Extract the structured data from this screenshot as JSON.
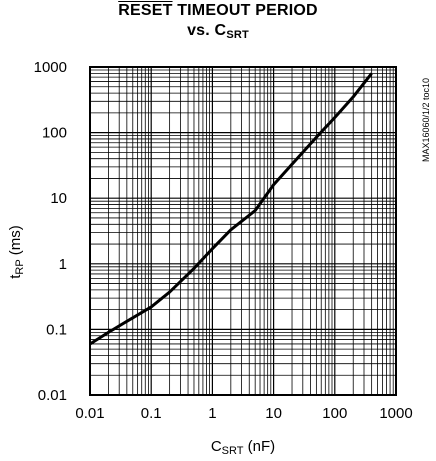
{
  "title_line1_overlined": "RESET",
  "title_line1_rest": " TIMEOUT PERIOD",
  "title_line2_prefix": "vs. C",
  "title_line2_sub": "SRT",
  "ylabel_main": "t",
  "ylabel_sub": "RP",
  "ylabel_unit": " (ms)",
  "xlabel_main": "C",
  "xlabel_sub": "SRT",
  "xlabel_unit": " (nF)",
  "watermark": "MAX16060/1/2 toc10",
  "chart_data": {
    "type": "line",
    "title": "RESET TIMEOUT PERIOD vs. CSRT",
    "xlabel": "CSRT (nF)",
    "ylabel": "tRP (ms)",
    "xscale": "log",
    "yscale": "log",
    "xlim": [
      0.01,
      1000
    ],
    "ylim": [
      0.01,
      1000
    ],
    "xticks": [
      "0.01",
      "0.1",
      "1",
      "10",
      "100",
      "1000"
    ],
    "yticks": [
      "0.01",
      "0.1",
      "1",
      "10",
      "100",
      "1000"
    ],
    "grid": true,
    "x": [
      0.01,
      0.02,
      0.05,
      0.1,
      0.2,
      0.5,
      1,
      2,
      5,
      10,
      20,
      50,
      100,
      200,
      400
    ],
    "y": [
      0.06,
      0.09,
      0.15,
      0.22,
      0.37,
      0.85,
      1.7,
      3.3,
      6.5,
      16,
      33,
      85,
      170,
      350,
      800
    ]
  }
}
